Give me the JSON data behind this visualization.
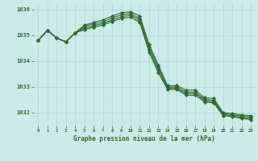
{
  "title": "Graphe pression niveau de la mer (hPa)",
  "background_color": "#cceae8",
  "grid_color": "#aad8d5",
  "line_color": "#2d6b2d",
  "xlim": [
    -0.5,
    23.5
  ],
  "ylim": [
    1031.5,
    1036.25
  ],
  "yticks": [
    1032,
    1033,
    1034,
    1035,
    1036
  ],
  "xticks": [
    0,
    1,
    2,
    3,
    4,
    5,
    6,
    7,
    8,
    9,
    10,
    11,
    12,
    13,
    14,
    15,
    16,
    17,
    18,
    19,
    20,
    21,
    22,
    23
  ],
  "series": [
    [
      1034.8,
      1035.2,
      1034.9,
      1034.75,
      1035.1,
      1035.4,
      1035.5,
      1035.6,
      1035.75,
      1035.88,
      1035.92,
      1035.75,
      1034.65,
      1033.85,
      1033.05,
      1033.05,
      1032.88,
      1032.88,
      1032.58,
      1032.55,
      1032.0,
      1031.97,
      1031.92,
      1031.88
    ],
    [
      1034.8,
      1035.2,
      1034.9,
      1034.75,
      1035.1,
      1035.35,
      1035.45,
      1035.52,
      1035.68,
      1035.8,
      1035.85,
      1035.65,
      1034.55,
      1033.75,
      1033.0,
      1033.0,
      1032.8,
      1032.8,
      1032.52,
      1032.48,
      1031.97,
      1031.92,
      1031.87,
      1031.83
    ],
    [
      1034.8,
      1035.2,
      1034.9,
      1034.75,
      1035.1,
      1035.28,
      1035.38,
      1035.46,
      1035.6,
      1035.73,
      1035.78,
      1035.58,
      1034.45,
      1033.65,
      1032.95,
      1032.95,
      1032.74,
      1032.74,
      1032.47,
      1032.42,
      1031.93,
      1031.88,
      1031.82,
      1031.78
    ],
    [
      1034.8,
      1035.2,
      1034.9,
      1034.75,
      1035.1,
      1035.22,
      1035.32,
      1035.4,
      1035.54,
      1035.66,
      1035.71,
      1035.5,
      1034.35,
      1033.55,
      1032.9,
      1032.9,
      1032.68,
      1032.68,
      1032.42,
      1032.38,
      1031.89,
      1031.84,
      1031.78,
      1031.73
    ]
  ]
}
